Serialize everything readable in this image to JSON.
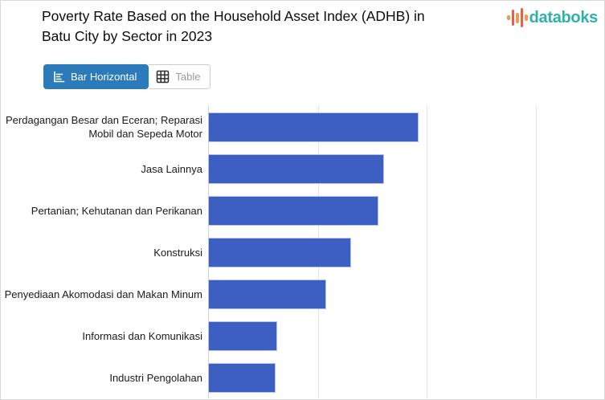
{
  "page": {
    "background": "#ffffff",
    "border_color": "#d9d9d9"
  },
  "header": {
    "title": "Poverty Rate Based on the Household Asset Index (ADHB) in Batu City by Sector in 2023",
    "brand": {
      "name": "databoks",
      "text_color": "#2fb1a9",
      "icon_bar_colors": [
        "#f2994a",
        "#e8604c",
        "#f2994a",
        "#e8604c",
        "#f2994a"
      ],
      "icon_bar_heights": [
        6,
        20,
        13,
        24,
        8
      ]
    }
  },
  "toolbar": {
    "bar_horizontal_label": "Bar Horizontal",
    "table_label": "Table",
    "active_view": "Bar Horizontal",
    "active_bg_color": "#2b7ab9",
    "inactive_text_color": "#9b9b9b"
  },
  "chart_data": {
    "type": "bar",
    "orientation": "horizontal",
    "title": "Poverty Rate Based on the Household Asset Index (ADHB) in Batu City by Sector in 2023",
    "categories": [
      "Perdagangan Besar dan Eceran; Reparasi Mobil dan Sepeda Motor",
      "Jasa Lainnya",
      "Pertanian; Kehutanan dan Perikanan",
      "Konstruksi",
      "Penyediaan Akomodasi dan Makan Minum",
      "Informasi dan Komunikasi",
      "Industri Pengolahan"
    ],
    "values": [
      1.93,
      1.61,
      1.56,
      1.31,
      1.08,
      0.63,
      0.62
    ],
    "value_units": "gridline units (x-axis tick labels cropped below visible area)",
    "xlim": [
      0,
      3.63
    ],
    "x_gridlines": [
      1,
      2,
      3
    ],
    "xlabel": "",
    "ylabel": "",
    "legend": false,
    "grid": true,
    "x_axis_labels_visible": false,
    "bar_color": "#3e5fc2",
    "bar_border_color": "#b6c3ea",
    "gridline_color": "#e4e4e4",
    "axis_line_color": "#d2d2d2"
  }
}
